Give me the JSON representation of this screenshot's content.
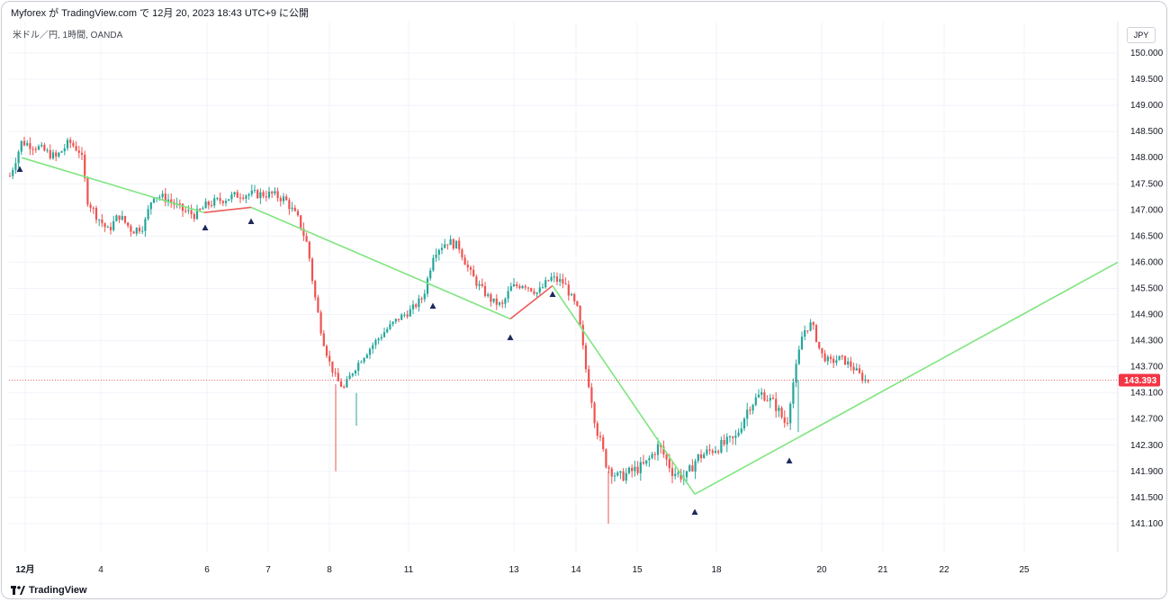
{
  "header": {
    "publisher_line": "Myforex が TradingView.com で 12月 20, 2023 18:43 UTC+9 に公開",
    "symbol_line": "米ドル／円, 1時間, OANDA",
    "currency_button": "JPY"
  },
  "footer": {
    "brand": "TradingView"
  },
  "chart_data": {
    "type": "candlestick",
    "symbol": "米ドル／円",
    "timeframe": "1時間",
    "source": "OANDA",
    "y_axis_ticks": [
      "150.000",
      "149.500",
      "149.000",
      "148.500",
      "148.000",
      "147.500",
      "147.000",
      "146.500",
      "146.000",
      "145.500",
      "144.900",
      "144.300",
      "143.700",
      "143.100",
      "142.700",
      "142.300",
      "141.900",
      "141.500",
      "141.100"
    ],
    "x_axis_ticks": [
      "12月",
      "4",
      "6",
      "7",
      "8",
      "11",
      "13",
      "14",
      "15",
      "18",
      "20",
      "21",
      "22",
      "25"
    ],
    "last_price": "143.393",
    "colors": {
      "up": "#26a69a",
      "down": "#ef5350",
      "trend_green": "#7fe57f",
      "trend_red": "#f05a5a",
      "marker": "#1e2a5a",
      "price_line": "#f23645"
    }
  }
}
